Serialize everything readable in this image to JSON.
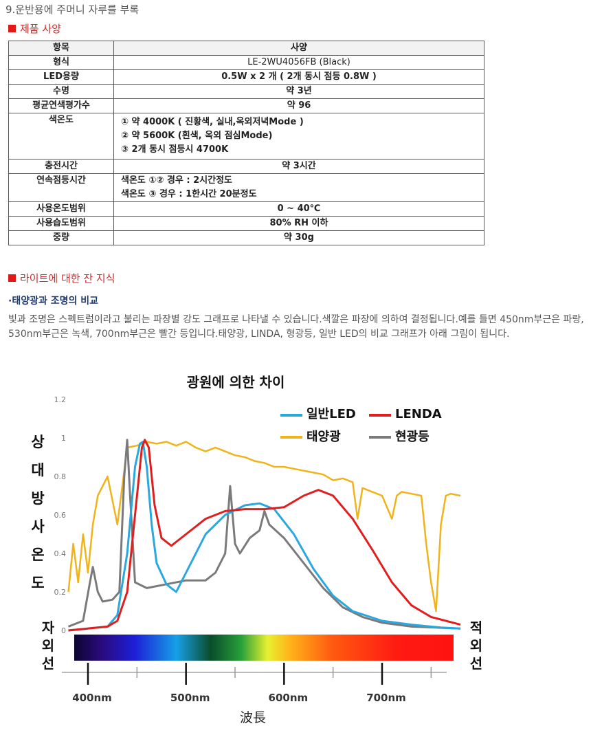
{
  "section_title": "9.운반용에 주머니 자루를 부록",
  "spec_heading": "제품 사양",
  "spec_table": {
    "header": [
      "항목",
      "사양"
    ],
    "rows": [
      {
        "key": "형식",
        "value": "LE-2WU4056FB   (Black)"
      },
      {
        "key": "LED용량",
        "value": "0.5W x 2 개 ( 2개 동시 점등 0.8W )"
      },
      {
        "key": "수명",
        "value": "약 3년"
      },
      {
        "key": "평균연색평가수",
        "value": "약 96"
      },
      {
        "key": "색온도",
        "lines": [
          "① 약 4000K   ( 진황색, 실내,옥외저녁Mode )",
          "② 약 5600K   (흰색,      옥외 점심Mode)",
          "③ 2개 동시 점등시 4700K"
        ]
      },
      {
        "key": "충전시간",
        "value": "약 3시간"
      },
      {
        "key": "연속점등시간",
        "lines": [
          "색온도 ①② 경우 : 2시간정도",
          "색온도 ③ 경우 : 1한시간 20분정도"
        ]
      },
      {
        "key": "사용온도범위",
        "value": "0 ~ 40℃"
      },
      {
        "key": "사용습도범위",
        "value": "80% RH 이하"
      },
      {
        "key": "중량",
        "value": "약 30g"
      }
    ]
  },
  "light_heading": "라이트에 대한 잔 지식",
  "compare_subheading": "·태양광과 조명의 비교",
  "paragraph": "빛과 조명은 스펙트럼이라고 불리는 파장별 강도 그래프로 나타낼 수 있습니다.색깔은 파장에 의하여 결정됩니다.예를 들면 450nm부근은 파랑, 530nm부근은 녹색, 700nm부근은 빨간 등입니다.태양광, LINDA, 형광등, 일반 LED의 비교 그래프가 아래 그림이 됩니다.",
  "chart_data": {
    "type": "line",
    "title": "광원에 의한 차이",
    "ylabel": "상대방사온도",
    "xlabel": "波長",
    "ylim": [
      0,
      1.2
    ],
    "yticks": [
      "0",
      "0.2",
      "0.4",
      "0.6",
      "0.8",
      "1",
      "1.2"
    ],
    "xlim": [
      380,
      780
    ],
    "xticks": [
      "400nm",
      "500nm",
      "600nm",
      "700nm"
    ],
    "left_band_label": [
      "자",
      "외",
      "선"
    ],
    "right_band_label": [
      "적",
      "외",
      "선"
    ],
    "legend_placement": "top-right",
    "series": [
      {
        "name": "일반LED",
        "color": "#29a8e0",
        "points": [
          [
            380,
            0.0
          ],
          [
            420,
            0.02
          ],
          [
            430,
            0.08
          ],
          [
            440,
            0.4
          ],
          [
            448,
            0.85
          ],
          [
            453,
            0.97
          ],
          [
            456,
            0.98
          ],
          [
            460,
            0.85
          ],
          [
            465,
            0.55
          ],
          [
            470,
            0.35
          ],
          [
            480,
            0.24
          ],
          [
            490,
            0.2
          ],
          [
            500,
            0.3
          ],
          [
            520,
            0.5
          ],
          [
            540,
            0.6
          ],
          [
            560,
            0.65
          ],
          [
            575,
            0.66
          ],
          [
            590,
            0.63
          ],
          [
            610,
            0.5
          ],
          [
            630,
            0.32
          ],
          [
            650,
            0.18
          ],
          [
            670,
            0.1
          ],
          [
            700,
            0.05
          ],
          [
            730,
            0.03
          ],
          [
            760,
            0.015
          ],
          [
            780,
            0.01
          ]
        ]
      },
      {
        "name": "LENDA",
        "color": "#e01e1e",
        "points": [
          [
            380,
            0.0
          ],
          [
            420,
            0.02
          ],
          [
            430,
            0.05
          ],
          [
            440,
            0.2
          ],
          [
            448,
            0.6
          ],
          [
            455,
            0.95
          ],
          [
            458,
            0.99
          ],
          [
            462,
            0.95
          ],
          [
            468,
            0.65
          ],
          [
            475,
            0.48
          ],
          [
            485,
            0.44
          ],
          [
            500,
            0.5
          ],
          [
            520,
            0.58
          ],
          [
            540,
            0.62
          ],
          [
            560,
            0.63
          ],
          [
            580,
            0.63
          ],
          [
            600,
            0.64
          ],
          [
            620,
            0.7
          ],
          [
            635,
            0.73
          ],
          [
            650,
            0.7
          ],
          [
            670,
            0.58
          ],
          [
            690,
            0.42
          ],
          [
            710,
            0.25
          ],
          [
            730,
            0.13
          ],
          [
            750,
            0.07
          ],
          [
            780,
            0.03
          ]
        ]
      },
      {
        "name": "태양광",
        "color": "#f0b31a",
        "points": [
          [
            380,
            0.2
          ],
          [
            385,
            0.45
          ],
          [
            390,
            0.25
          ],
          [
            395,
            0.5
          ],
          [
            400,
            0.3
          ],
          [
            405,
            0.55
          ],
          [
            410,
            0.7
          ],
          [
            420,
            0.8
          ],
          [
            430,
            0.55
          ],
          [
            440,
            0.95
          ],
          [
            450,
            0.96
          ],
          [
            460,
            0.98
          ],
          [
            470,
            0.97
          ],
          [
            480,
            0.98
          ],
          [
            490,
            0.96
          ],
          [
            500,
            0.98
          ],
          [
            510,
            0.95
          ],
          [
            520,
            0.93
          ],
          [
            530,
            0.95
          ],
          [
            540,
            0.93
          ],
          [
            550,
            0.91
          ],
          [
            560,
            0.9
          ],
          [
            570,
            0.88
          ],
          [
            580,
            0.87
          ],
          [
            590,
            0.85
          ],
          [
            600,
            0.85
          ],
          [
            610,
            0.84
          ],
          [
            620,
            0.83
          ],
          [
            630,
            0.82
          ],
          [
            640,
            0.81
          ],
          [
            650,
            0.78
          ],
          [
            660,
            0.79
          ],
          [
            670,
            0.77
          ],
          [
            675,
            0.58
          ],
          [
            680,
            0.74
          ],
          [
            690,
            0.72
          ],
          [
            700,
            0.7
          ],
          [
            710,
            0.58
          ],
          [
            715,
            0.7
          ],
          [
            720,
            0.72
          ],
          [
            730,
            0.71
          ],
          [
            740,
            0.7
          ],
          [
            745,
            0.45
          ],
          [
            750,
            0.25
          ],
          [
            755,
            0.1
          ],
          [
            760,
            0.55
          ],
          [
            765,
            0.7
          ],
          [
            770,
            0.71
          ],
          [
            780,
            0.7
          ]
        ]
      },
      {
        "name": "현광등",
        "color": "#7a7a7a",
        "points": [
          [
            380,
            0.02
          ],
          [
            395,
            0.05
          ],
          [
            402,
            0.25
          ],
          [
            405,
            0.33
          ],
          [
            410,
            0.2
          ],
          [
            415,
            0.15
          ],
          [
            425,
            0.16
          ],
          [
            432,
            0.2
          ],
          [
            437,
            0.8
          ],
          [
            440,
            0.99
          ],
          [
            443,
            0.7
          ],
          [
            448,
            0.25
          ],
          [
            460,
            0.22
          ],
          [
            480,
            0.24
          ],
          [
            500,
            0.26
          ],
          [
            520,
            0.26
          ],
          [
            530,
            0.3
          ],
          [
            540,
            0.4
          ],
          [
            545,
            0.75
          ],
          [
            550,
            0.45
          ],
          [
            555,
            0.4
          ],
          [
            565,
            0.48
          ],
          [
            575,
            0.52
          ],
          [
            580,
            0.62
          ],
          [
            585,
            0.55
          ],
          [
            600,
            0.48
          ],
          [
            620,
            0.35
          ],
          [
            640,
            0.22
          ],
          [
            660,
            0.12
          ],
          [
            680,
            0.07
          ],
          [
            700,
            0.04
          ],
          [
            730,
            0.02
          ],
          [
            780,
            0.01
          ]
        ]
      }
    ]
  }
}
